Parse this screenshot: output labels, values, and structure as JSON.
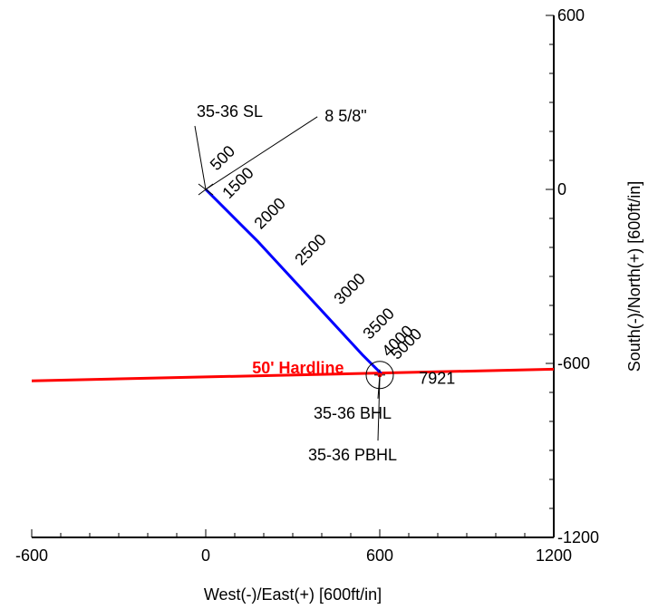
{
  "chart_data": {
    "type": "line",
    "title": "",
    "xlabel": "West(-)/East(+) [600ft/in]",
    "ylabel": "South(-)/North(+) [600ft/in]",
    "xlim": [
      -600,
      1200
    ],
    "ylim": [
      -1200,
      600
    ],
    "x_ticks": [
      {
        "value": -600,
        "label": "-600"
      },
      {
        "value": 0,
        "label": "0"
      },
      {
        "value": 600,
        "label": "600"
      },
      {
        "value": 1200,
        "label": "1200"
      }
    ],
    "y_ticks": [
      {
        "value": 600,
        "label": "600"
      },
      {
        "value": 0,
        "label": "0"
      },
      {
        "value": -600,
        "label": "-600"
      },
      {
        "value": -1200,
        "label": "-1200"
      }
    ],
    "grid": false,
    "series": [
      {
        "color": "#0000ff",
        "x": [
          0,
          60,
          120,
          180,
          240,
          300,
          360,
          420,
          480,
          540,
          590,
          605
        ],
        "y": [
          0,
          -60,
          -120,
          -180,
          -245,
          -310,
          -375,
          -440,
          -505,
          -570,
          -620,
          -635
        ]
      }
    ],
    "depth_labels": [
      {
        "text": "500",
        "x": 38,
        "y": 62
      },
      {
        "text": "1500",
        "x": 80,
        "y": -35
      },
      {
        "text": "2000",
        "x": 190,
        "y": -140
      },
      {
        "text": "2500",
        "x": 330,
        "y": -265
      },
      {
        "text": "3000",
        "x": 465,
        "y": -400
      },
      {
        "text": "3500",
        "x": 565,
        "y": -520
      },
      {
        "text": "4000",
        "x": 630,
        "y": -580
      },
      {
        "text": "5000",
        "x": 660,
        "y": -590
      },
      {
        "text": "7921",
        "x": 735,
        "y": -670
      }
    ],
    "hardline": {
      "label": "50' Hardline",
      "color": "#ff0000",
      "x": [
        -600,
        1200
      ],
      "y": [
        -660,
        -620
      ],
      "label_x": 160,
      "label_y": -635
    },
    "target_circle": {
      "x": 600,
      "y": -640
    },
    "surface_marker": {
      "x": 0,
      "y": 0
    },
    "annotations": [
      {
        "text": "35-36 SL",
        "text_x": 0,
        "text_y": 250,
        "point_x": 0,
        "point_y": 0
      },
      {
        "text": "8 5/8\"",
        "text_x": 385,
        "text_y": 235,
        "point_x": 0,
        "point_y": 0
      },
      {
        "text": "35-36 BHL",
        "text_x": 250,
        "text_y": -790,
        "point_x": 600,
        "point_y": -640
      },
      {
        "text": "35-36 PBHL",
        "text_x": 250,
        "text_y": -935,
        "point_x": 600,
        "point_y": -650
      }
    ]
  }
}
